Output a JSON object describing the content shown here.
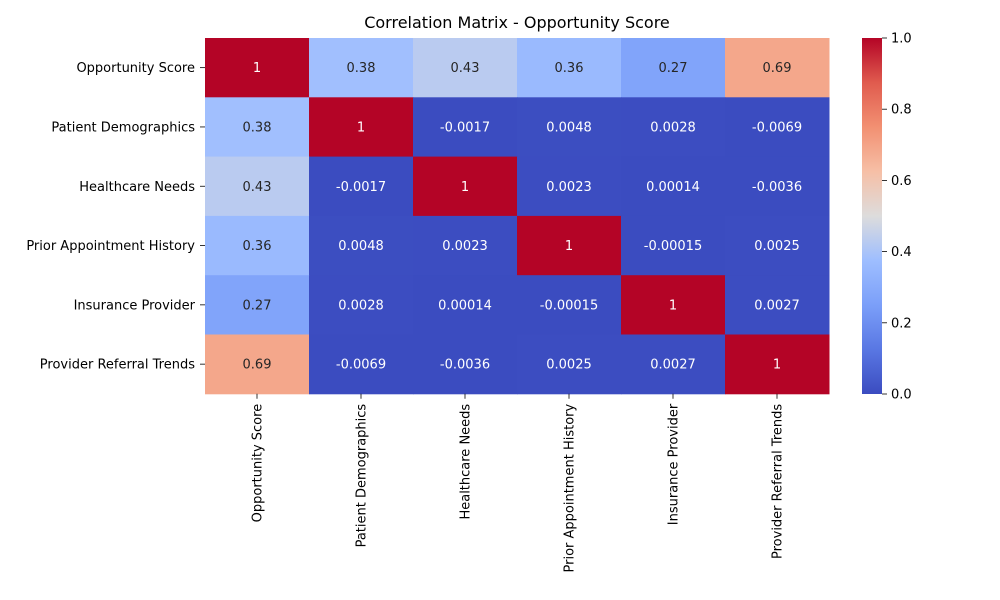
{
  "chart_data": {
    "type": "heatmap",
    "title": "Correlation Matrix - Opportunity Score",
    "xlabel": "",
    "ylabel": "",
    "rows": [
      "Opportunity Score",
      "Patient Demographics",
      "Healthcare Needs",
      "Prior Appointment History",
      "Insurance Provider",
      "Provider Referral Trends"
    ],
    "columns": [
      "Opportunity Score",
      "Patient Demographics",
      "Healthcare Needs",
      "Prior Appointment History",
      "Insurance Provider",
      "Provider Referral Trends"
    ],
    "values": [
      [
        1,
        0.38,
        0.43,
        0.36,
        0.27,
        0.69
      ],
      [
        0.38,
        1,
        -0.0017,
        0.0048,
        0.0028,
        -0.0069
      ],
      [
        0.43,
        -0.0017,
        1,
        0.0023,
        0.00014,
        -0.0036
      ],
      [
        0.36,
        0.0048,
        0.0023,
        1,
        -0.00015,
        0.0025
      ],
      [
        0.27,
        0.0028,
        0.00014,
        -0.00015,
        1,
        0.0027
      ],
      [
        0.69,
        -0.0069,
        -0.0036,
        0.0025,
        0.0027,
        1
      ]
    ],
    "annotations": [
      [
        "1",
        "0.38",
        "0.43",
        "0.36",
        "0.27",
        "0.69"
      ],
      [
        "0.38",
        "1",
        "-0.0017",
        "0.0048",
        "0.0028",
        "-0.0069"
      ],
      [
        "0.43",
        "-0.0017",
        "1",
        "0.0023",
        "0.00014",
        "-0.0036"
      ],
      [
        "0.36",
        "0.0048",
        "0.0023",
        "1",
        "-0.00015",
        "0.0025"
      ],
      [
        "0.27",
        "0.0028",
        "0.00014",
        "-0.00015",
        "1",
        "0.0027"
      ],
      [
        "0.69",
        "-0.0069",
        "-0.0036",
        "0.0025",
        "0.0027",
        "1"
      ]
    ],
    "colormap": "coolwarm",
    "colorbar": {
      "range": [
        0.0,
        1.0
      ],
      "ticks": [
        "0.0",
        "0.2",
        "0.4",
        "0.6",
        "0.8",
        "1.0"
      ]
    },
    "grid": false,
    "legend": "colorbar-right"
  }
}
